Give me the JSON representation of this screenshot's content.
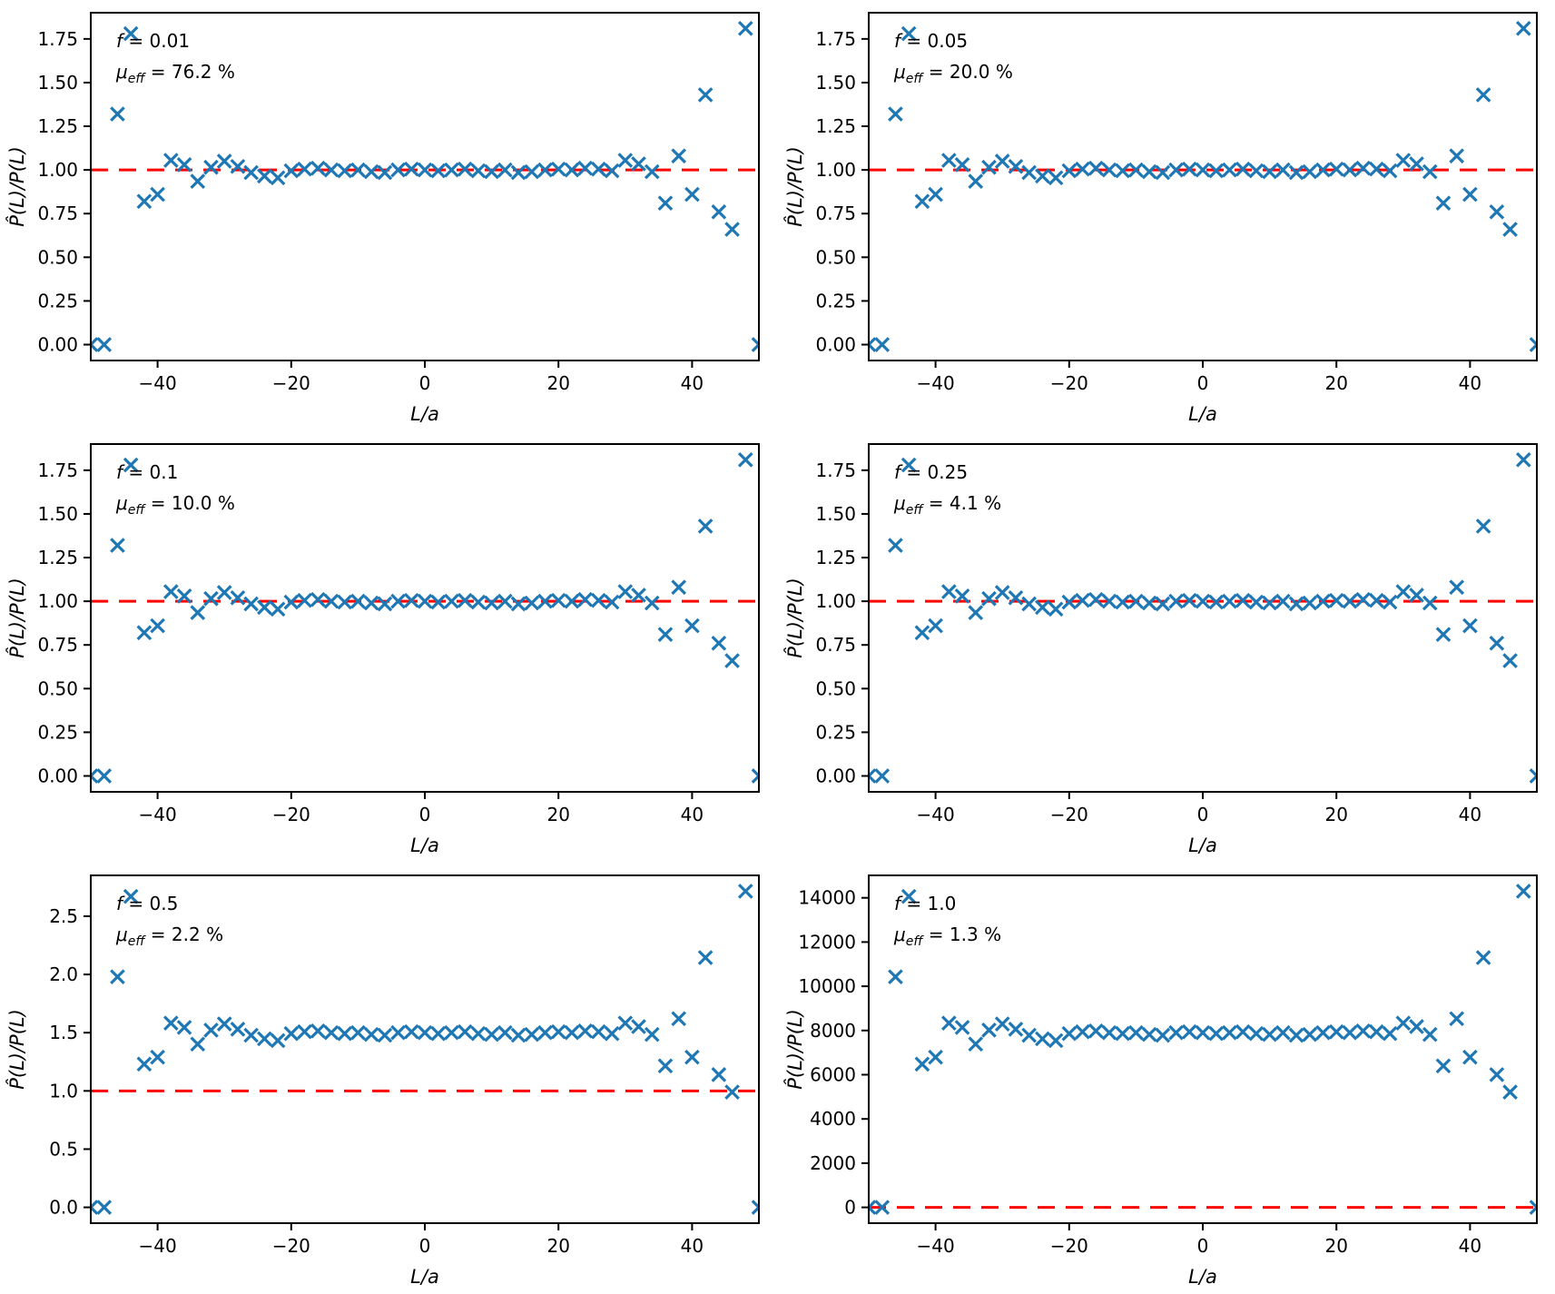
{
  "figure": {
    "background": "#ffffff",
    "marker": "x",
    "marker_color": "#1f77b4",
    "refline_color": "#ff0000",
    "axis_color": "#000000",
    "tick_fontsize": 20,
    "label_fontsize": 21,
    "annotation_fontsize": 20
  },
  "chart_data": {
    "type": "scatter",
    "layout": "2x3-grid",
    "xlabel": "L/a",
    "ylabel": "P̂(L)/P(L)",
    "xlim": [
      -50,
      50
    ],
    "xticks": [
      -40,
      -20,
      0,
      20,
      40
    ],
    "xtick_labels": [
      "−40",
      "−20",
      "0",
      "20",
      "40"
    ],
    "refline_y": 1.0,
    "refline_style": "dashed",
    "grid": false,
    "legend": "none",
    "x": [
      -50,
      -48,
      -46,
      -44,
      -42,
      -40,
      -38,
      -36,
      -34,
      -32,
      -30,
      -28,
      -26,
      -24,
      -22,
      -20,
      -18,
      -16,
      -14,
      -12,
      -10,
      -8,
      -6,
      -4,
      -2,
      0,
      2,
      4,
      6,
      8,
      10,
      12,
      14,
      16,
      18,
      20,
      22,
      24,
      26,
      28,
      30,
      32,
      34,
      36,
      38,
      40,
      42,
      44,
      46,
      48,
      50
    ],
    "panels": [
      {
        "position": "row1-col1",
        "f_prefix": "f",
        "f_value": "0.01",
        "mu_prefix": "μ",
        "mu_sub": "eff",
        "mu_value": "76.2 %",
        "annotation_line1": "f = 0.01",
        "annotation_line2": "μeff = 76.2 %",
        "ylim": [
          -0.091,
          1.9
        ],
        "yticks": [
          0,
          0.25,
          0.5,
          0.75,
          1.0,
          1.25,
          1.5,
          1.75
        ],
        "ytick_labels": [
          "0.00",
          "0.25",
          "0.50",
          "0.75",
          "1.00",
          "1.25",
          "1.50",
          "1.75"
        ],
        "y": [
          0,
          0,
          1.32,
          1.78,
          0.82,
          0.86,
          1.055,
          1.03,
          0.935,
          1.015,
          1.05,
          1.02,
          0.985,
          0.965,
          0.955,
          0.995,
          1.005,
          1.01,
          1.0,
          0.995,
          1.0,
          0.99,
          0.985,
          1.0,
          1.005,
          1.0,
          0.995,
          1.0,
          1.005,
          0.995,
          0.99,
          1.0,
          0.985,
          0.99,
          1.0,
          1.005,
          1.0,
          1.01,
          1.005,
          0.995,
          1.055,
          1.035,
          0.99,
          0.81,
          1.08,
          0.86,
          1.43,
          0.76,
          0.66,
          1.81,
          0
        ]
      },
      {
        "position": "row1-col2",
        "f_prefix": "f",
        "f_value": "0.05",
        "mu_prefix": "μ",
        "mu_sub": "eff",
        "mu_value": "20.0 %",
        "annotation_line1": "f = 0.05",
        "annotation_line2": "μeff = 20.0 %",
        "ylim": [
          -0.091,
          1.9
        ],
        "yticks": [
          0,
          0.25,
          0.5,
          0.75,
          1.0,
          1.25,
          1.5,
          1.75
        ],
        "ytick_labels": [
          "0.00",
          "0.25",
          "0.50",
          "0.75",
          "1.00",
          "1.25",
          "1.50",
          "1.75"
        ],
        "y": [
          0,
          0,
          1.32,
          1.78,
          0.82,
          0.86,
          1.055,
          1.03,
          0.935,
          1.015,
          1.05,
          1.02,
          0.985,
          0.965,
          0.955,
          0.995,
          1.005,
          1.01,
          1.0,
          0.995,
          1.0,
          0.99,
          0.985,
          1.0,
          1.005,
          1.0,
          0.995,
          1.0,
          1.005,
          0.995,
          0.99,
          1.0,
          0.985,
          0.99,
          1.0,
          1.005,
          1.0,
          1.01,
          1.005,
          0.995,
          1.055,
          1.035,
          0.99,
          0.81,
          1.08,
          0.86,
          1.43,
          0.76,
          0.66,
          1.81,
          0
        ]
      },
      {
        "position": "row2-col1",
        "f_prefix": "f",
        "f_value": "0.1",
        "mu_prefix": "μ",
        "mu_sub": "eff",
        "mu_value": "10.0 %",
        "annotation_line1": "f = 0.1",
        "annotation_line2": "μeff = 10.0 %",
        "ylim": [
          -0.091,
          1.9
        ],
        "yticks": [
          0,
          0.25,
          0.5,
          0.75,
          1.0,
          1.25,
          1.5,
          1.75
        ],
        "ytick_labels": [
          "0.00",
          "0.25",
          "0.50",
          "0.75",
          "1.00",
          "1.25",
          "1.50",
          "1.75"
        ],
        "y": [
          0,
          0,
          1.32,
          1.78,
          0.82,
          0.86,
          1.055,
          1.03,
          0.935,
          1.015,
          1.05,
          1.02,
          0.985,
          0.965,
          0.955,
          0.995,
          1.005,
          1.01,
          1.0,
          0.995,
          1.0,
          0.99,
          0.985,
          1.0,
          1.005,
          1.0,
          0.995,
          1.0,
          1.005,
          0.995,
          0.99,
          1.0,
          0.985,
          0.99,
          1.0,
          1.005,
          1.0,
          1.01,
          1.005,
          0.995,
          1.055,
          1.035,
          0.99,
          0.81,
          1.08,
          0.86,
          1.43,
          0.76,
          0.66,
          1.81,
          0
        ]
      },
      {
        "position": "row2-col2",
        "f_prefix": "f",
        "f_value": "0.25",
        "mu_prefix": "μ",
        "mu_sub": "eff",
        "mu_value": "4.1 %",
        "annotation_line1": "f = 0.25",
        "annotation_line2": "μeff = 4.1 %",
        "ylim": [
          -0.091,
          1.9
        ],
        "yticks": [
          0,
          0.25,
          0.5,
          0.75,
          1.0,
          1.25,
          1.5,
          1.75
        ],
        "ytick_labels": [
          "0.00",
          "0.25",
          "0.50",
          "0.75",
          "1.00",
          "1.25",
          "1.50",
          "1.75"
        ],
        "y": [
          0,
          0,
          1.32,
          1.78,
          0.82,
          0.86,
          1.055,
          1.03,
          0.935,
          1.015,
          1.05,
          1.02,
          0.985,
          0.965,
          0.955,
          0.995,
          1.005,
          1.01,
          1.0,
          0.995,
          1.0,
          0.99,
          0.985,
          1.0,
          1.005,
          1.0,
          0.995,
          1.0,
          1.005,
          0.995,
          0.99,
          1.0,
          0.985,
          0.99,
          1.0,
          1.005,
          1.0,
          1.01,
          1.005,
          0.995,
          1.055,
          1.035,
          0.99,
          0.81,
          1.08,
          0.86,
          1.43,
          0.76,
          0.66,
          1.81,
          0
        ]
      },
      {
        "position": "row3-col1",
        "f_prefix": "f",
        "f_value": "0.5",
        "mu_prefix": "μ",
        "mu_sub": "eff",
        "mu_value": "2.2 %",
        "annotation_line1": "f = 0.5",
        "annotation_line2": "μeff = 2.2 %",
        "ylim": [
          -0.136,
          2.851
        ],
        "yticks": [
          0,
          0.5,
          1.0,
          1.5,
          2.0,
          2.5
        ],
        "ytick_labels": [
          "0.0",
          "0.5",
          "1.0",
          "1.5",
          "2.0",
          "2.5"
        ],
        "y": [
          0,
          0,
          1.98,
          2.67,
          1.23,
          1.29,
          1.582,
          1.545,
          1.402,
          1.522,
          1.575,
          1.53,
          1.478,
          1.448,
          1.432,
          1.492,
          1.508,
          1.515,
          1.5,
          1.492,
          1.5,
          1.485,
          1.478,
          1.5,
          1.508,
          1.5,
          1.492,
          1.5,
          1.508,
          1.492,
          1.485,
          1.5,
          1.478,
          1.485,
          1.5,
          1.508,
          1.5,
          1.515,
          1.508,
          1.492,
          1.582,
          1.552,
          1.485,
          1.215,
          1.62,
          1.29,
          2.145,
          1.14,
          0.99,
          2.715,
          0
        ]
      },
      {
        "position": "row3-col2",
        "f_prefix": "f",
        "f_value": "1.0",
        "mu_prefix": "μ",
        "mu_sub": "eff",
        "mu_value": "1.3 %",
        "annotation_line1": "f = 1.0",
        "annotation_line2": "μeff = 1.3 %",
        "ylim": [
          -715,
          15015
        ],
        "yticks": [
          0,
          2000,
          4000,
          6000,
          8000,
          10000,
          12000,
          14000
        ],
        "ytick_labels": [
          "0",
          "2000",
          "4000",
          "6000",
          "8000",
          "10000",
          "12000",
          "14000"
        ],
        "y": [
          0,
          0,
          10428,
          14062,
          6478,
          6794,
          8334,
          8137,
          7386,
          8018,
          8295,
          8058,
          7782,
          7624,
          7544,
          7860,
          7940,
          7979,
          7900,
          7860,
          7900,
          7821,
          7782,
          7900,
          7940,
          7900,
          7860,
          7900,
          7940,
          7860,
          7821,
          7900,
          7782,
          7821,
          7900,
          7940,
          7900,
          7979,
          7940,
          7860,
          8334,
          8176,
          7821,
          6399,
          8532,
          6794,
          11297,
          6004,
          5214,
          14299,
          0
        ]
      }
    ]
  }
}
